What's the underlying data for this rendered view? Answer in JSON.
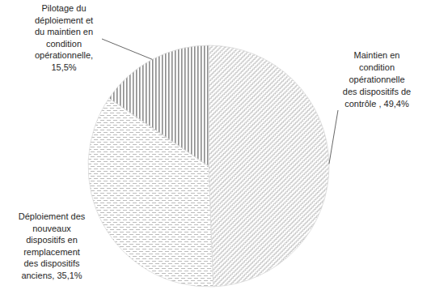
{
  "chart_data": {
    "type": "pie",
    "categories": [
      "Maintien en condition opérationnelle des dispositifs de contrôle ,",
      "Déploiement des nouveaux dispositifs en remplacement des dispositifs anciens,",
      "Pilotage du déploiement et du maintien en condition opérationnelle,"
    ],
    "values": [
      49.4,
      35.1,
      15.5
    ],
    "value_labels": [
      "49,4%",
      "35,1%",
      "15,5%"
    ],
    "colors": [
      "#a6a6a6",
      "#b3b3b3",
      "#8c8c8c"
    ],
    "data_labels": true
  }
}
